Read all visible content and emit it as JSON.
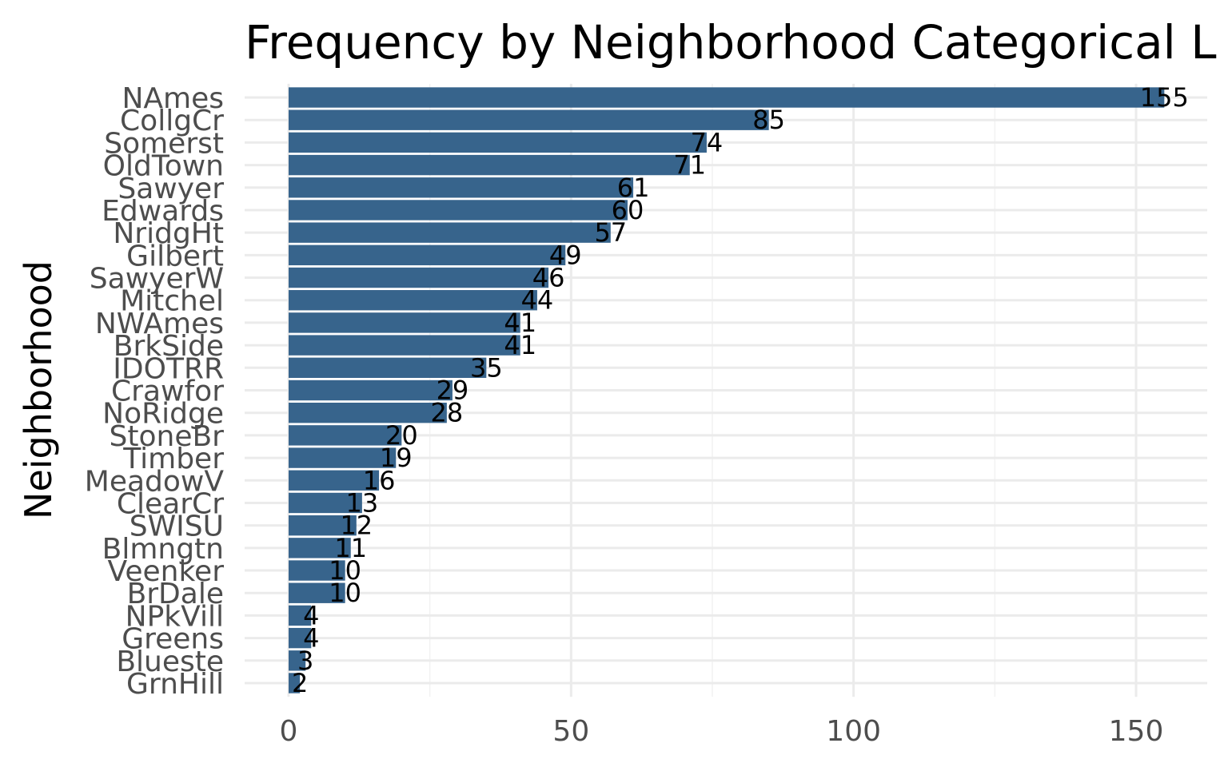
{
  "chart_data": {
    "type": "bar",
    "orientation": "horizontal",
    "title": "Frequency by Neighborhood Categorical L",
    "xlabel": "",
    "ylabel": "Neighborhood",
    "categories": [
      "NAmes",
      "CollgCr",
      "Somerst",
      "OldTown",
      "Sawyer",
      "Edwards",
      "NridgHt",
      "Gilbert",
      "SawyerW",
      "Mitchel",
      "NWAmes",
      "BrkSide",
      "IDOTRR",
      "Crawfor",
      "NoRidge",
      "StoneBr",
      "Timber",
      "MeadowV",
      "ClearCr",
      "SWISU",
      "Blmngtn",
      "Veenker",
      "BrDale",
      "NPkVill",
      "Greens",
      "Blueste",
      "GrnHill"
    ],
    "values": [
      155,
      85,
      74,
      71,
      61,
      60,
      57,
      49,
      46,
      44,
      41,
      41,
      35,
      29,
      28,
      20,
      19,
      16,
      13,
      12,
      11,
      10,
      10,
      4,
      4,
      3,
      2
    ],
    "xticks": [
      "0",
      "50",
      "100",
      "150"
    ],
    "xtick_values": [
      0,
      50,
      100,
      150
    ],
    "xlim": [
      -7.75,
      162.75
    ],
    "grid": true,
    "bar_color": "#37648c"
  }
}
